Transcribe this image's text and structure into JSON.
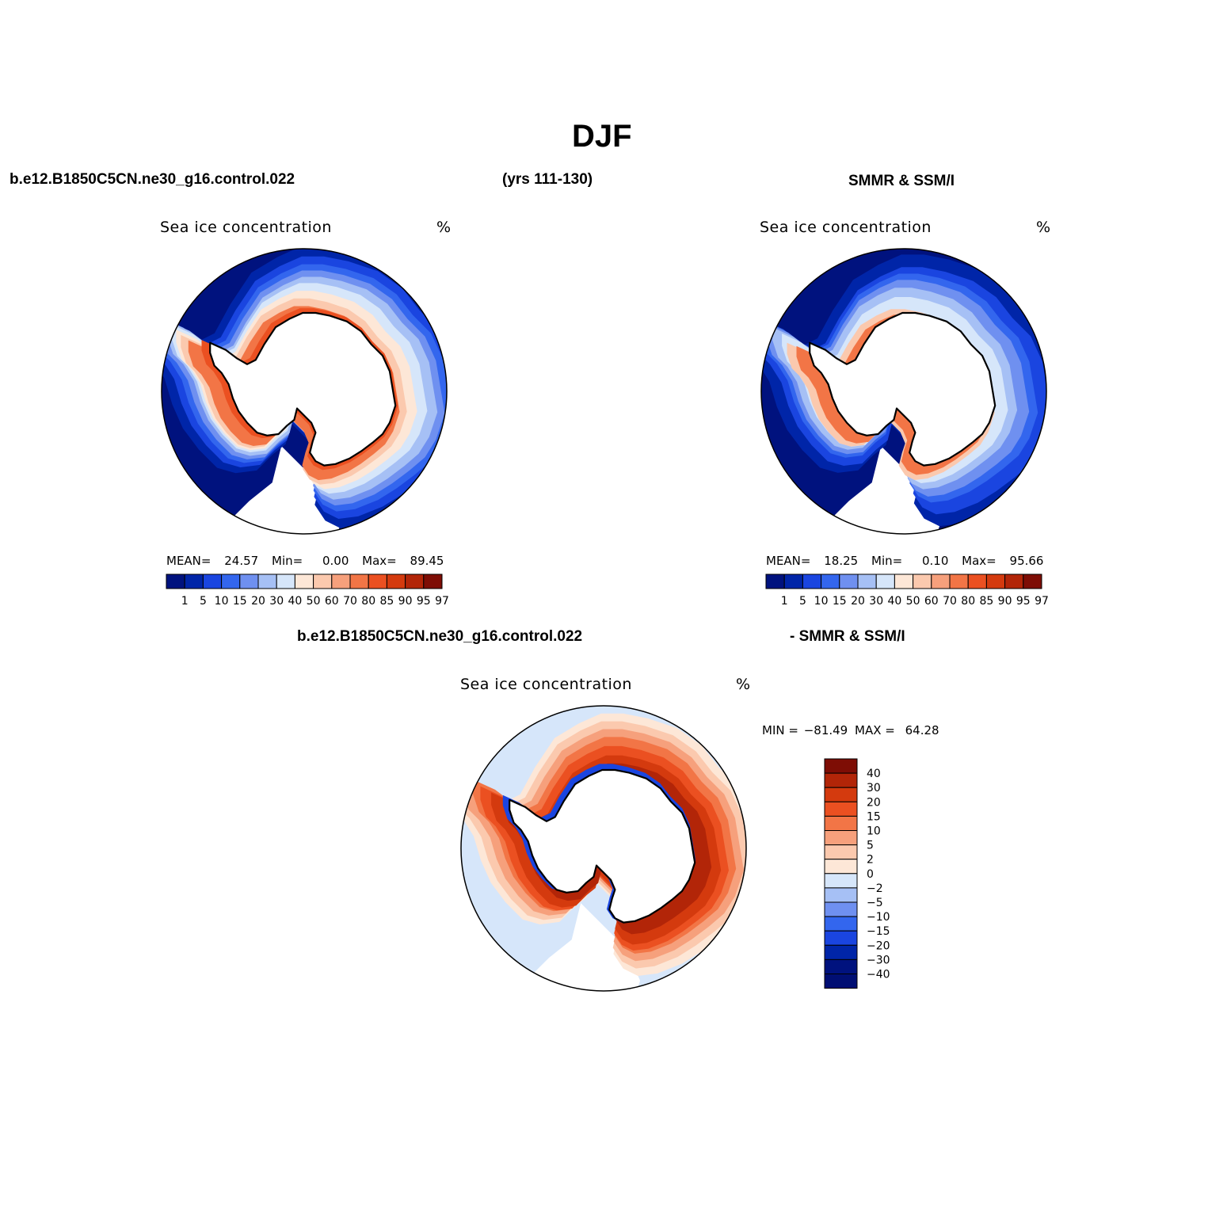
{
  "figure": {
    "title": "DJF",
    "case_name": "b.e12.B1850C5CN.ne30_g16.control.022",
    "years": "(yrs 111-130)",
    "obs_name": "SMMR & SSM/I",
    "diff_case_name": "b.e12.B1850C5CN.ne30_g16.control.022",
    "diff_obs_name": "- SMMR & SSM/I"
  },
  "panels": {
    "model": {
      "title": "Sea ice concentration",
      "units": "%",
      "stats": {
        "mean_label": "MEAN=",
        "mean": "24.57",
        "min_label": "Min=",
        "min": "0.00",
        "max_label": "Max=",
        "max": "89.45"
      }
    },
    "obs": {
      "title": "Sea ice concentration",
      "units": "%",
      "stats": {
        "mean_label": "MEAN=",
        "mean": "18.25",
        "min_label": "Min=",
        "min": "0.10",
        "max_label": "Max=",
        "max": "95.66"
      }
    },
    "diff": {
      "title": "Sea ice concentration",
      "units": "%",
      "stats": {
        "min_label": "MIN =",
        "min": "−81.49",
        "max_label": "MAX =",
        "max": "64.28"
      }
    }
  },
  "colorbars": {
    "concentration": {
      "labels": [
        "1",
        "5",
        "10",
        "15",
        "20",
        "30",
        "40",
        "50",
        "60",
        "70",
        "80",
        "85",
        "90",
        "95",
        "97"
      ],
      "colors": [
        "#00127e",
        "#0025a8",
        "#1a45e0",
        "#3366ee",
        "#6f90f0",
        "#a6c0f5",
        "#d6e6fa",
        "#fde7d7",
        "#fbc9ae",
        "#f6a07c",
        "#f27546",
        "#eb5021",
        "#d43a0e",
        "#b22508",
        "#7e0d05"
      ]
    },
    "difference": {
      "labels": [
        "40",
        "30",
        "20",
        "15",
        "10",
        "5",
        "2",
        "0",
        "−2",
        "−5",
        "−10",
        "−15",
        "−20",
        "−30",
        "−40"
      ],
      "colors": [
        "#7e0d05",
        "#b22508",
        "#d43a0e",
        "#eb5021",
        "#f27546",
        "#f6a07c",
        "#fbc9ae",
        "#fde7d7",
        "#d6e6fa",
        "#a6c0f5",
        "#6f90f0",
        "#3366ee",
        "#1a45e0",
        "#0025a8",
        "#00127e",
        "#000e73"
      ]
    }
  }
}
